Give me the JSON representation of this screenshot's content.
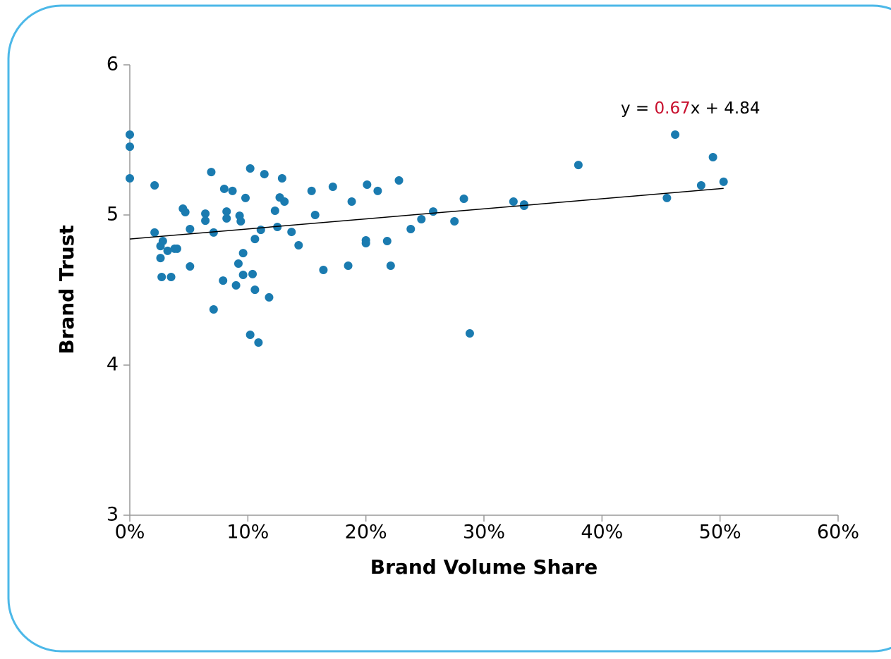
{
  "chart_data": {
    "type": "scatter",
    "x_label": "Brand Volume Share",
    "y_label": "Brand Trust",
    "color": "#1a7bb0",
    "x": [
      0,
      0,
      0,
      0.021,
      0.021,
      0.028,
      0.026,
      0.026,
      0.032,
      0.027,
      0.035,
      0.038,
      0.04,
      0.045,
      0.047,
      0.051,
      0.051,
      0.064,
      0.064,
      0.069,
      0.071,
      0.071,
      0.08,
      0.082,
      0.082,
      0.079,
      0.087,
      0.09,
      0.093,
      0.094,
      0.092,
      0.096,
      0.096,
      0.098,
      0.102,
      0.102,
      0.106,
      0.104,
      0.106,
      0.109,
      0.111,
      0.114,
      0.118,
      0.123,
      0.125,
      0.127,
      0.129,
      0.131,
      0.137,
      0.143,
      0.154,
      0.157,
      0.164,
      0.172,
      0.185,
      0.188,
      0.2,
      0.2,
      0.201,
      0.21,
      0.218,
      0.221,
      0.228,
      0.238,
      0.247,
      0.257,
      0.275,
      0.283,
      0.288,
      0.325,
      0.334,
      0.334,
      0.38,
      0.455,
      0.462,
      0.484,
      0.494,
      0.503
    ],
    "y": [
      5.535,
      5.455,
      5.244,
      5.197,
      4.883,
      4.826,
      4.793,
      4.713,
      4.761,
      4.587,
      4.587,
      4.775,
      4.775,
      5.042,
      5.019,
      4.906,
      4.657,
      5.009,
      4.962,
      5.286,
      4.883,
      4.371,
      5.174,
      5.023,
      4.977,
      4.563,
      5.16,
      4.531,
      4.995,
      4.958,
      4.676,
      4.746,
      4.601,
      5.113,
      5.31,
      4.202,
      4.84,
      4.606,
      4.502,
      4.15,
      4.901,
      5.272,
      4.451,
      5.028,
      4.92,
      5.117,
      5.244,
      5.089,
      4.887,
      4.798,
      5.16,
      5.0,
      4.634,
      5.188,
      4.662,
      5.089,
      4.831,
      4.812,
      5.202,
      5.16,
      4.826,
      4.662,
      5.23,
      4.906,
      4.972,
      5.023,
      4.958,
      5.108,
      4.211,
      5.089,
      5.061,
      5.07,
      5.333,
      5.113,
      5.535,
      5.197,
      5.385,
      5.221
    ],
    "xlim": [
      0,
      0.6
    ],
    "ylim": [
      3,
      6
    ],
    "xticks": [
      {
        "value": 0,
        "label": "0%"
      },
      {
        "value": 0.1,
        "label": "10%"
      },
      {
        "value": 0.2,
        "label": "20%"
      },
      {
        "value": 0.3,
        "label": "30%"
      },
      {
        "value": 0.4,
        "label": "40%"
      },
      {
        "value": 0.5,
        "label": "50%"
      },
      {
        "value": 0.6,
        "label": "60%"
      }
    ],
    "yticks": [
      3,
      4,
      5,
      6
    ],
    "trendline": {
      "slope": 0.67,
      "intercept": 4.84,
      "x_range": [
        0,
        0.503
      ],
      "color": "#000000",
      "slope_color": "#c8102e",
      "equation_parts": [
        "y = ",
        "x + "
      ]
    }
  }
}
